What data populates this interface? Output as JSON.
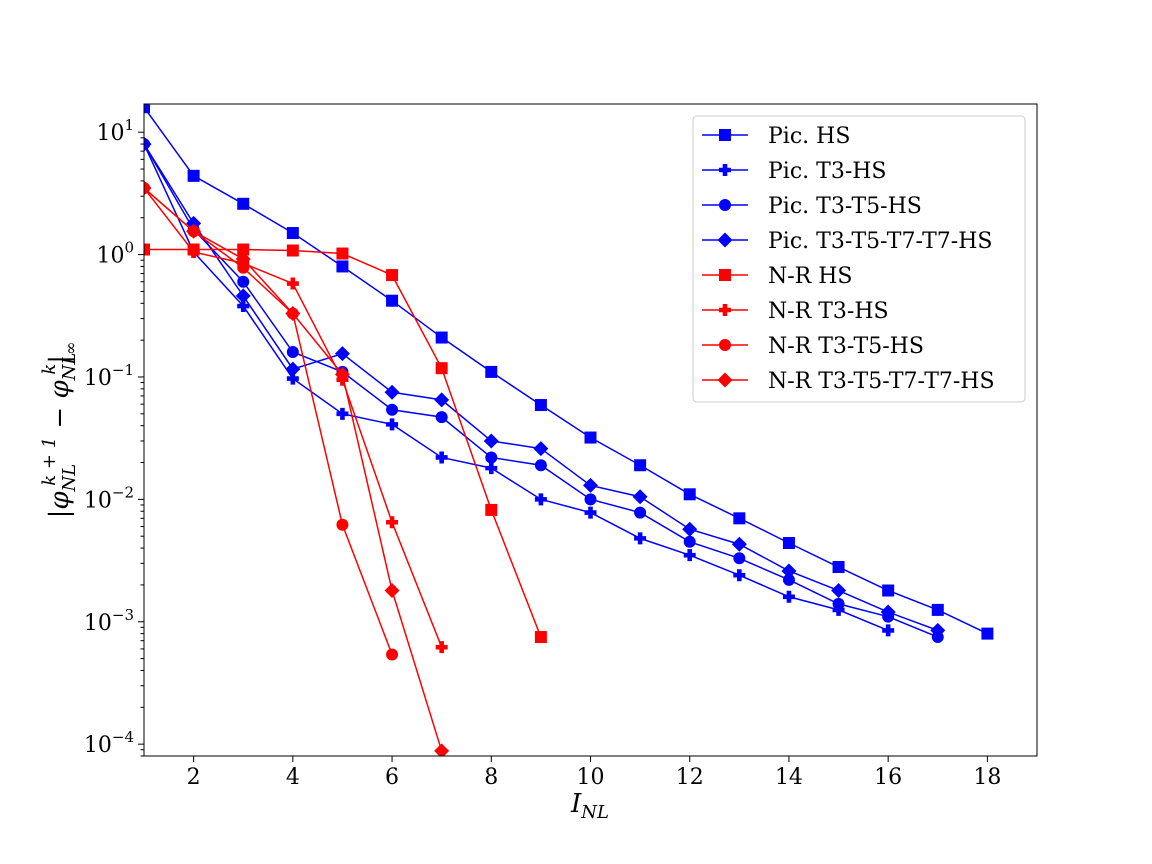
{
  "chart_data": {
    "type": "line",
    "xlabel": "I_NL",
    "ylabel": "|φ_NL^{k+1} − φ_NL^k|_∞",
    "yscale": "log",
    "xlim": [
      1,
      19
    ],
    "ylim": [
      8e-05,
      17
    ],
    "xticks": [
      2,
      4,
      6,
      8,
      10,
      12,
      14,
      16,
      18
    ],
    "yticks": [
      {
        "value": 10,
        "base": "10",
        "exp": "1"
      },
      {
        "value": 1,
        "base": "10",
        "exp": "0"
      },
      {
        "value": 0.1,
        "base": "10",
        "exp": "−1"
      },
      {
        "value": 0.01,
        "base": "10",
        "exp": "−2"
      },
      {
        "value": 0.001,
        "base": "10",
        "exp": "−3"
      },
      {
        "value": 0.0001,
        "base": "10",
        "exp": "−4"
      }
    ],
    "legend_position": "top-right",
    "grid": false,
    "series": [
      {
        "name": "Pic. HS",
        "color": "#0000ff",
        "marker": "square",
        "x": [
          1,
          2,
          3,
          4,
          5,
          6,
          7,
          8,
          9,
          10,
          11,
          12,
          13,
          14,
          15,
          16,
          17,
          18
        ],
        "y": [
          16,
          4.4,
          2.6,
          1.5,
          0.8,
          0.42,
          0.21,
          0.11,
          0.059,
          0.032,
          0.019,
          0.011,
          0.007,
          0.0044,
          0.0028,
          0.0018,
          0.00125,
          0.0008
        ]
      },
      {
        "name": "Pic. T3-HS",
        "color": "#0000ff",
        "marker": "plus",
        "x": [
          1,
          2,
          3,
          4,
          5,
          6,
          7,
          8,
          9,
          10,
          11,
          12,
          13,
          14,
          15,
          16
        ],
        "y": [
          8.0,
          1.05,
          0.38,
          0.097,
          0.05,
          0.041,
          0.022,
          0.018,
          0.01,
          0.0078,
          0.0048,
          0.0035,
          0.0024,
          0.0016,
          0.00125,
          0.00085
        ]
      },
      {
        "name": "Pic. T3-T5-HS",
        "color": "#0000ff",
        "marker": "circle",
        "x": [
          1,
          2,
          3,
          4,
          5,
          6,
          7,
          8,
          9,
          10,
          11,
          12,
          13,
          14,
          15,
          16,
          17
        ],
        "y": [
          8.0,
          1.6,
          0.6,
          0.16,
          0.11,
          0.054,
          0.047,
          0.022,
          0.019,
          0.01,
          0.0078,
          0.0045,
          0.0033,
          0.0022,
          0.0014,
          0.0011,
          0.00075
        ]
      },
      {
        "name": "Pic. T3-T5-T7-T7-HS",
        "color": "#0000ff",
        "marker": "diamond",
        "x": [
          1,
          2,
          3,
          4,
          5,
          6,
          7,
          8,
          9,
          10,
          11,
          12,
          13,
          14,
          15,
          16,
          17
        ],
        "y": [
          8.0,
          1.8,
          0.46,
          0.116,
          0.155,
          0.075,
          0.065,
          0.03,
          0.026,
          0.013,
          0.0105,
          0.0057,
          0.0043,
          0.0026,
          0.0018,
          0.0012,
          0.00085
        ]
      },
      {
        "name": "N-R HS",
        "color": "#ff0000",
        "marker": "square",
        "x": [
          1,
          2,
          3,
          4,
          5,
          6,
          7,
          8,
          9
        ],
        "y": [
          1.1,
          1.1,
          1.1,
          1.08,
          1.02,
          0.68,
          0.118,
          0.0082,
          0.00075
        ]
      },
      {
        "name": "N-R T3-HS",
        "color": "#ff0000",
        "marker": "plus",
        "x": [
          1,
          2,
          3,
          4,
          5,
          6,
          7
        ],
        "y": [
          3.5,
          1.05,
          0.85,
          0.58,
          0.095,
          0.0065,
          0.00062
        ]
      },
      {
        "name": "N-R T3-T5-HS",
        "color": "#ff0000",
        "marker": "circle",
        "x": [
          1,
          2,
          3,
          4,
          5,
          6
        ],
        "y": [
          3.5,
          1.55,
          0.78,
          0.33,
          0.0062,
          0.00054
        ]
      },
      {
        "name": "N-R T3-T5-T7-T7-HS",
        "color": "#ff0000",
        "marker": "diamond",
        "x": [
          1,
          2,
          3,
          4,
          5,
          6,
          7
        ],
        "y": [
          3.5,
          1.55,
          0.92,
          0.33,
          0.105,
          0.0018,
          8.8e-05
        ]
      }
    ]
  }
}
